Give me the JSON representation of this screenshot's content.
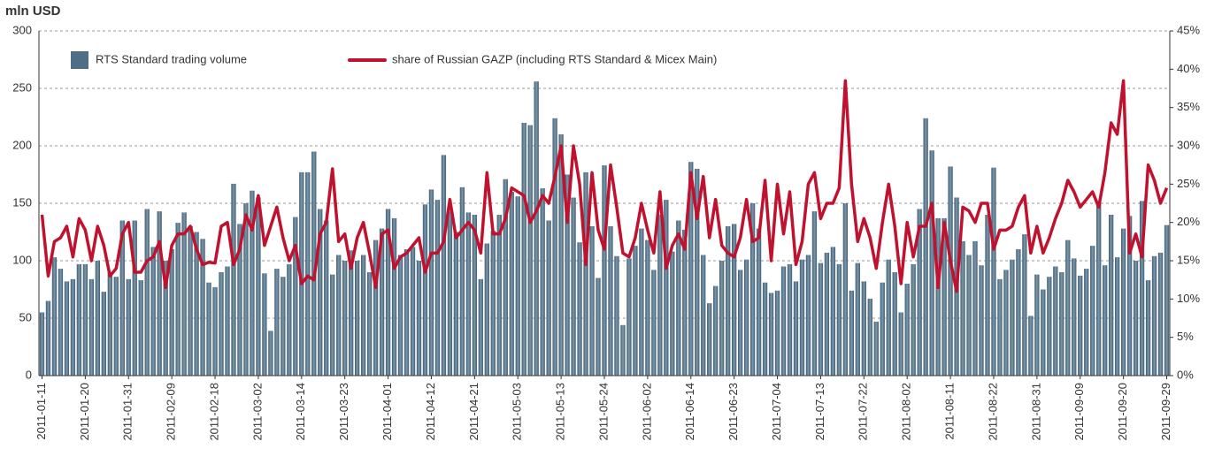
{
  "chart_data": {
    "type": "bar_line",
    "y_label": "mln USD",
    "categories": [
      "2011-01-11",
      null,
      null,
      null,
      null,
      null,
      null,
      "2011-01-20",
      null,
      null,
      null,
      null,
      null,
      null,
      "2011-01-31",
      null,
      null,
      null,
      null,
      null,
      null,
      "2011-02-09",
      null,
      null,
      null,
      null,
      null,
      null,
      "2011-02-18",
      null,
      null,
      null,
      null,
      null,
      null,
      "2011-03-02",
      null,
      null,
      null,
      null,
      null,
      null,
      "2011-03-14",
      null,
      null,
      null,
      null,
      null,
      null,
      "2011-03-23",
      null,
      null,
      null,
      null,
      null,
      null,
      "2011-04-01",
      null,
      null,
      null,
      null,
      null,
      null,
      "2011-04-12",
      null,
      null,
      null,
      null,
      null,
      null,
      "2011-04-21",
      null,
      null,
      null,
      null,
      null,
      null,
      "2011-05-03",
      null,
      null,
      null,
      null,
      null,
      null,
      "2011-05-13",
      null,
      null,
      null,
      null,
      null,
      null,
      "2011-05-24",
      null,
      null,
      null,
      null,
      null,
      null,
      "2011-06-02",
      null,
      null,
      null,
      null,
      null,
      null,
      "2011-06-14",
      null,
      null,
      null,
      null,
      null,
      null,
      "2011-06-23",
      null,
      null,
      null,
      null,
      null,
      null,
      "2011-07-04",
      null,
      null,
      null,
      null,
      null,
      null,
      "2011-07-13",
      null,
      null,
      null,
      null,
      null,
      null,
      "2011-07-22",
      null,
      null,
      null,
      null,
      null,
      null,
      "2011-08-02",
      null,
      null,
      null,
      null,
      null,
      null,
      "2011-08-11",
      null,
      null,
      null,
      null,
      null,
      null,
      "2011-08-22",
      null,
      null,
      null,
      null,
      null,
      null,
      "2011-08-31",
      null,
      null,
      null,
      null,
      null,
      null,
      "2011-09-09",
      null,
      null,
      null,
      null,
      null,
      null,
      "2011-09-20",
      null,
      null,
      null,
      null,
      null,
      null,
      "2011-09-29"
    ],
    "series": [
      {
        "name": "RTS Standard trading volume",
        "color": "#4f6e86",
        "kind": "bar",
        "values": [
          55,
          65,
          103,
          93,
          82,
          84,
          97,
          97,
          84,
          100,
          73,
          90,
          86,
          135,
          84,
          135,
          83,
          145,
          112,
          143,
          100,
          110,
          133,
          142,
          130,
          125,
          119,
          81,
          77,
          90,
          95,
          167,
          132,
          150,
          161,
          155,
          89,
          39,
          93,
          86,
          97,
          138,
          177,
          177,
          195,
          145,
          135,
          88,
          105,
          100,
          109,
          100,
          105,
          90,
          118,
          128,
          145,
          137,
          105,
          110,
          112,
          100,
          149,
          162,
          153,
          192,
          143,
          125,
          164,
          142,
          140,
          84,
          115,
          126,
          140,
          171,
          160,
          156,
          220,
          218,
          256,
          163,
          135,
          224,
          210,
          175,
          155,
          116,
          177,
          130,
          85,
          183,
          130,
          104,
          44,
          102,
          113,
          128,
          118,
          92,
          140,
          153,
          108,
          135,
          127,
          186,
          180,
          105,
          63,
          78,
          100,
          130,
          132,
          92,
          101,
          150,
          128,
          81,
          72,
          74,
          95,
          97,
          82,
          101,
          105,
          143,
          98,
          107,
          112,
          97,
          150,
          74,
          98,
          82,
          67,
          47,
          81,
          101,
          90,
          55,
          80,
          97,
          145,
          224,
          196,
          137,
          137,
          182,
          155,
          117,
          105,
          117,
          96,
          140,
          181,
          84,
          92,
          101,
          110,
          123,
          52,
          88,
          75,
          86,
          95,
          90,
          118,
          102,
          87,
          93,
          113,
          152,
          96,
          140,
          103,
          128,
          139,
          100,
          152,
          83,
          104,
          107,
          131
        ]
      },
      {
        "name": "share of Russian GAZP (including RTS Standard & Micex Main)",
        "color": "#c0122f",
        "kind": "line",
        "axis": "y2",
        "values": [
          21,
          13,
          17.5,
          18,
          19.5,
          15.5,
          20.5,
          19,
          15,
          19.5,
          17,
          13,
          14,
          18.5,
          20,
          13.5,
          13.5,
          15,
          15.5,
          17.5,
          11.5,
          17,
          18.5,
          18.5,
          19.5,
          16.5,
          14.5,
          14.8,
          14.7,
          19.5,
          20,
          14.5,
          16.5,
          21,
          19,
          23.5,
          17,
          19.5,
          22,
          18,
          15,
          17,
          12,
          13,
          12.5,
          18.5,
          20,
          27,
          17.5,
          18.5,
          14,
          18,
          20,
          16,
          11.5,
          18.5,
          19,
          14,
          15.5,
          16,
          17,
          18,
          13.5,
          16,
          16,
          17.5,
          23,
          18,
          19,
          20,
          19,
          16,
          26.5,
          18.5,
          18.5,
          20.5,
          24.5,
          24,
          23.5,
          20,
          21.5,
          23.5,
          22.5,
          26,
          30,
          20,
          30,
          25,
          14.5,
          26.5,
          19,
          16.5,
          27.5,
          22,
          16,
          15.5,
          18,
          22.5,
          19,
          16,
          24,
          14,
          17,
          18.5,
          16.5,
          26.5,
          20.5,
          26,
          18,
          23,
          17,
          16,
          15.5,
          18,
          23,
          17.5,
          18,
          25.5,
          15,
          25,
          18.5,
          24,
          14.5,
          17.5,
          25,
          26.5,
          20.5,
          22.5,
          22.5,
          24.5,
          38.5,
          25,
          17.5,
          20.5,
          18,
          14,
          20,
          25,
          19.5,
          12,
          20,
          15.5,
          19.5,
          19.5,
          22.5,
          11.5,
          20,
          15,
          11,
          22,
          21.5,
          20,
          22.5,
          22.5,
          16.5,
          19,
          19,
          19.5,
          22,
          23.5,
          16,
          19.5,
          16,
          18,
          20.5,
          22.5,
          25.5,
          24,
          22,
          23,
          24,
          22,
          26.5,
          33,
          31.5,
          38.5,
          16,
          18.5,
          15.5,
          27.5,
          25.5,
          22.5,
          24.5
        ]
      }
    ],
    "ylim": [
      0,
      300
    ],
    "yticks": [
      0,
      50,
      100,
      150,
      200,
      250,
      300
    ],
    "y2lim": [
      0,
      45
    ],
    "y2ticks": [
      {
        "value": 0,
        "label": "0%"
      },
      {
        "value": 5,
        "label": "5%"
      },
      {
        "value": 10,
        "label": "10%"
      },
      {
        "value": 15,
        "label": "15%"
      },
      {
        "value": 20,
        "label": "20%"
      },
      {
        "value": 25,
        "label": "25%"
      },
      {
        "value": 30,
        "label": "30%"
      },
      {
        "value": 35,
        "label": "35%"
      },
      {
        "value": 40,
        "label": "40%"
      },
      {
        "value": 45,
        "label": "45%"
      }
    ],
    "grid": true
  }
}
